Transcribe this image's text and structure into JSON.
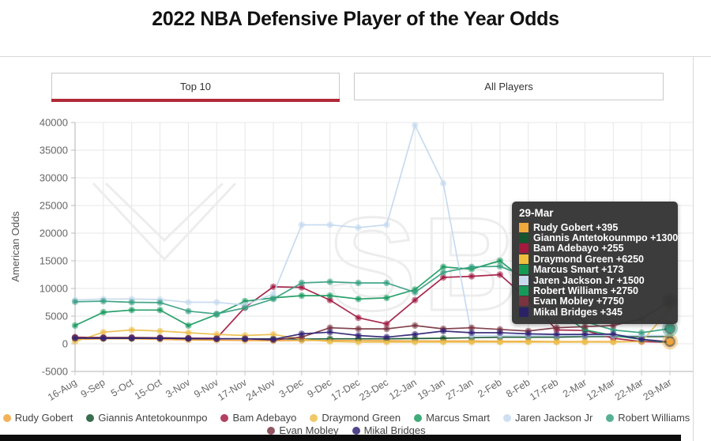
{
  "page": {
    "title": "2022 NBA Defensive Player of the Year Odds"
  },
  "tabs": [
    {
      "label": "Top 10",
      "active": true,
      "active_bar_color": "#b02a37"
    },
    {
      "label": "All Players",
      "active": false
    }
  ],
  "watermark": {
    "text": "SBR",
    "color": "#ededed"
  },
  "chart_data": {
    "type": "line",
    "title": "",
    "xlabel": "",
    "ylabel": "American Odds",
    "ylim": [
      -5000,
      40000
    ],
    "ytick_step": 5000,
    "grid": true,
    "legend_position": "bottom",
    "legend_row_split": 7,
    "categories": [
      "16-Aug",
      "9-Sep",
      "5-Oct",
      "15-Oct",
      "3-Nov",
      "9-Nov",
      "17-Nov",
      "24-Nov",
      "3-Dec",
      "9-Dec",
      "17-Dec",
      "23-Dec",
      "12-Jan",
      "19-Jan",
      "27-Jan",
      "2-Feb",
      "8-Feb",
      "17-Feb",
      "2-Mar",
      "12-Mar",
      "22-Mar",
      "29-Mar"
    ],
    "series": [
      {
        "name": "Rudy Gobert",
        "color": "#F0A43C",
        "end_marker": true,
        "values": [
          800,
          900,
          900,
          800,
          700,
          650,
          600,
          550,
          600,
          600,
          600,
          550,
          500,
          500,
          500,
          450,
          450,
          400,
          400,
          400,
          400,
          395
        ]
      },
      {
        "name": "Giannis Antetokounmpo",
        "color": "#16542F",
        "end_marker": false,
        "values": [
          1100,
          1000,
          1000,
          1000,
          950,
          900,
          900,
          900,
          850,
          900,
          900,
          900,
          950,
          1000,
          1100,
          1200,
          1200,
          1200,
          1300,
          1300,
          1300,
          1300
        ]
      },
      {
        "name": "Bam Adebayo",
        "color": "#A41E45",
        "end_marker": false,
        "values": [
          1200,
          1100,
          1100,
          1050,
          1000,
          1000,
          6600,
          10300,
          10200,
          7900,
          4700,
          3600,
          7900,
          12000,
          12200,
          12500,
          8000,
          2500,
          2400,
          1000,
          400,
          255
        ]
      },
      {
        "name": "Draymond Green",
        "color": "#ECC04E",
        "end_marker": false,
        "values": [
          400,
          2100,
          2500,
          2300,
          2000,
          1700,
          1500,
          1700,
          800,
          400,
          300,
          300,
          300,
          300,
          300,
          300,
          300,
          300,
          300,
          300,
          400,
          6250
        ]
      },
      {
        "name": "Marcus Smart",
        "color": "#1E9C62",
        "end_marker": false,
        "values": [
          3300,
          5700,
          6100,
          6100,
          3300,
          5300,
          7700,
          8300,
          8700,
          8700,
          8100,
          8300,
          9800,
          13900,
          13500,
          15000,
          11000,
          6000,
          2500,
          1500,
          800,
          173
        ]
      },
      {
        "name": "Jaren Jackson Jr",
        "color": "#C5D9EF",
        "end_marker": false,
        "values": [
          7900,
          8100,
          8100,
          8000,
          7500,
          7500,
          7000,
          9000,
          21500,
          21500,
          21000,
          21500,
          39500,
          29000,
          1500,
          1500,
          1500,
          1500,
          1500,
          1500,
          1500,
          1500
        ]
      },
      {
        "name": "Robert Williams",
        "color": "#3AA183",
        "end_marker": true,
        "values": [
          7600,
          7700,
          7500,
          7450,
          5900,
          5400,
          6500,
          8100,
          11000,
          11200,
          11000,
          11000,
          9300,
          12900,
          13900,
          14000,
          12000,
          8000,
          4000,
          2500,
          2000,
          2750
        ]
      },
      {
        "name": "Evan Mobley",
        "color": "#7C3845",
        "end_marker": true,
        "values": [
          1100,
          1150,
          1150,
          1100,
          1000,
          900,
          900,
          700,
          1200,
          2900,
          2700,
          2700,
          3300,
          2700,
          2900,
          2600,
          2300,
          2900,
          3100,
          3300,
          4500,
          7750
        ]
      },
      {
        "name": "Mikal Bridges",
        "color": "#332577",
        "end_marker": false,
        "values": [
          1000,
          1000,
          1000,
          1000,
          950,
          900,
          900,
          800,
          1800,
          2100,
          1500,
          1200,
          1700,
          2300,
          2000,
          2000,
          1800,
          1700,
          1700,
          1750,
          800,
          345
        ]
      }
    ]
  },
  "tooltip": {
    "title": "29-Mar",
    "rows": [
      {
        "name": "Rudy Gobert",
        "odds": "+395",
        "color": "#EFA93C"
      },
      {
        "name": "Giannis Antetokounmpo",
        "odds": "+1300",
        "color": "#14572E"
      },
      {
        "name": "Bam Adebayo",
        "odds": "+255",
        "color": "#A31A3E"
      },
      {
        "name": "Draymond Green",
        "odds": "+6250",
        "color": "#EFC03C"
      },
      {
        "name": "Marcus Smart",
        "odds": "+173",
        "color": "#169A52"
      },
      {
        "name": "Jaren Jackson Jr",
        "odds": "+1500",
        "color": "#C8D9EE"
      },
      {
        "name": "Robert Williams",
        "odds": "+2750",
        "color": "#169A5A"
      },
      {
        "name": "Evan Mobley",
        "odds": "+7750",
        "color": "#7A333F"
      },
      {
        "name": "Mikal Bridges",
        "odds": "+345",
        "color": "#2B2167"
      }
    ]
  }
}
